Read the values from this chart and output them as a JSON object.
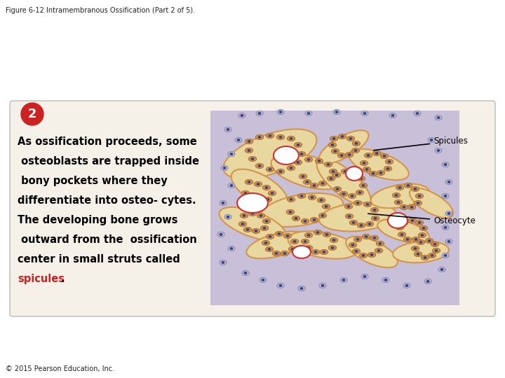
{
  "figure_title": "Figure 6-12 Intramembranous Ossification (Part 2 of 5).",
  "copyright": "© 2015 Pearson Education, Inc.",
  "step_number": "2",
  "step_bg_color": "#cc2222",
  "step_text_color": "#ffffff",
  "panel_bg_color": "#f5f0e8",
  "panel_border_color": "#cccccc",
  "body_text_lines": [
    "As ossification proceeds, some",
    " osteoblasts are trapped inside",
    " bony pockets where they",
    "differentiate into osteo- cytes.",
    "The developing bone grows",
    " outward from the  ossification",
    "center in small struts called",
    "spicules."
  ],
  "body_text_bold_color": "#000000",
  "spicules_color": "#cc2222",
  "label_spicules": "Spicules",
  "label_osteocyte": "Osteocyte",
  "image_bg_lavender": "#c8c0d8",
  "bone_fill": "#e8d8a0",
  "bone_border": "#d4944a",
  "cell_fill": "#d4944a",
  "cell_nucleus": "#334488",
  "blood_vessel_border": "#cc3333",
  "blood_vessel_fill": "#ffffff"
}
